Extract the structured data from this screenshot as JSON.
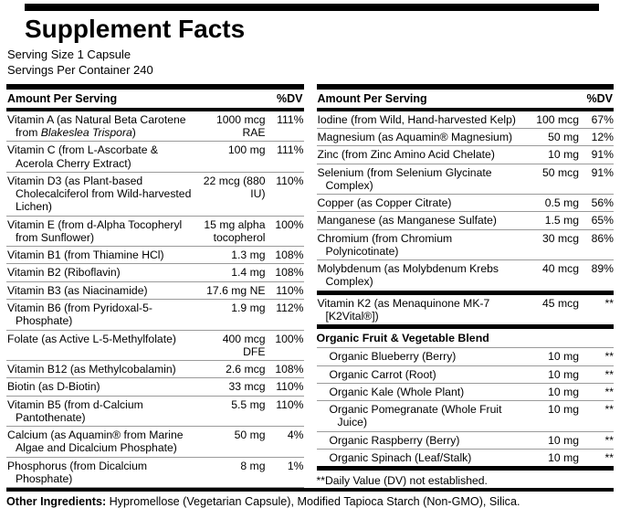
{
  "title": "Supplement Facts",
  "serving_size": "Serving Size 1 Capsule",
  "servings_per_container": "Servings Per Container 240",
  "column_header": {
    "amount": "Amount Per Serving",
    "dv": "%DV"
  },
  "left_rows": [
    {
      "name_pre": "Vitamin A (as Natural Beta Carotene from ",
      "name_italic": "Blakeslea Trispora",
      "name_post": ")",
      "amount": "1000 mcg RAE",
      "dv": "111%"
    },
    {
      "name_pre": "Vitamin C (from L-Ascorbate & Acerola Cherry Extract)",
      "amount": "100 mg",
      "dv": "111%"
    },
    {
      "name_pre": "Vitamin D3 (as Plant-based Cholecalciferol from Wild-harvested Lichen)",
      "amount": "22 mcg (880 IU)",
      "dv": "110%"
    },
    {
      "name_pre": "Vitamin E (from d-Alpha Tocopheryl from Sunflower)",
      "amount": "15 mg alpha tocopherol",
      "dv": "100%"
    },
    {
      "name_pre": "Vitamin B1 (from Thiamine HCl)",
      "amount": "1.3 mg",
      "dv": "108%"
    },
    {
      "name_pre": "Vitamin B2 (Riboflavin)",
      "amount": "1.4 mg",
      "dv": "108%"
    },
    {
      "name_pre": "Vitamin B3 (as Niacinamide)",
      "amount": "17.6 mg NE",
      "dv": "110%"
    },
    {
      "name_pre": "Vitamin B6 (from Pyridoxal-5-Phosphate)",
      "amount": "1.9 mg",
      "dv": "112%"
    },
    {
      "name_pre": "Folate (as Active L-5-Methylfolate)",
      "amount": "400 mcg DFE",
      "dv": "100%"
    },
    {
      "name_pre": "Vitamin B12 (as Methylcobalamin)",
      "amount": "2.6 mcg",
      "dv": "108%"
    },
    {
      "name_pre": "Biotin (as D-Biotin)",
      "amount": "33 mcg",
      "dv": "110%"
    },
    {
      "name_pre": "Vitamin B5 (from d-Calcium Pantothenate)",
      "amount": "5.5 mg",
      "dv": "110%"
    },
    {
      "name_pre": "Calcium (as Aquamin® from Marine Algae and Dicalcium Phosphate)",
      "amount": "50 mg",
      "dv": "4%"
    },
    {
      "name_pre": "Phosphorus (from Dicalcium Phosphate)",
      "amount": "8 mg",
      "dv": "1%"
    }
  ],
  "mineral_rows": [
    {
      "name_pre": "Iodine (from Wild, Hand-harvested Kelp)",
      "amount": "100 mcg",
      "dv": "67%"
    },
    {
      "name_pre": "Magnesium (as Aquamin® Magnesium)",
      "amount": "50 mg",
      "dv": "12%"
    },
    {
      "name_pre": "Zinc (from Zinc Amino Acid Chelate)",
      "amount": "10 mg",
      "dv": "91%"
    },
    {
      "name_pre": "Selenium (from Selenium Glycinate Complex)",
      "amount": "50 mcg",
      "dv": "91%"
    },
    {
      "name_pre": "Copper (as Copper Citrate)",
      "amount": "0.5 mg",
      "dv": "56%"
    },
    {
      "name_pre": "Manganese (as Manganese Sulfate)",
      "amount": "1.5 mg",
      "dv": "65%"
    },
    {
      "name_pre": "Chromium (from Chromium Polynicotinate)",
      "amount": "30 mcg",
      "dv": "86%"
    },
    {
      "name_pre": "Molybdenum (as Molybdenum Krebs Complex)",
      "amount": "40 mcg",
      "dv": "89%"
    }
  ],
  "vitamin_k2": {
    "name_pre": "Vitamin K2 (as Menaquinone MK-7 [K2Vital®])",
    "amount": "45 mcg",
    "dv": "**"
  },
  "blend": {
    "title": "Organic Fruit & Vegetable Blend",
    "rows": [
      {
        "name_pre": "Organic Blueberry (Berry)",
        "amount": "10 mg",
        "dv": "**"
      },
      {
        "name_pre": "Organic Carrot (Root)",
        "amount": "10 mg",
        "dv": "**"
      },
      {
        "name_pre": "Organic Kale (Whole Plant)",
        "amount": "10 mg",
        "dv": "**"
      },
      {
        "name_pre": "Organic Pomegranate (Whole Fruit Juice)",
        "amount": "10 mg",
        "dv": "**"
      },
      {
        "name_pre": "Organic Raspberry (Berry)",
        "amount": "10 mg",
        "dv": "**"
      },
      {
        "name_pre": "Organic Spinach (Leaf/Stalk)",
        "amount": "10 mg",
        "dv": "**"
      }
    ]
  },
  "footnote": "**Daily Value (DV) not established.",
  "other_ingredients": {
    "label": "Other Ingredients:",
    "text": " Hypromellose (Vegetarian Capsule), Modified Tapioca Starch (Non-GMO), Silica."
  },
  "colors": {
    "ink": "#000000",
    "background": "#ffffff",
    "hairline": "#9a9a9a"
  }
}
